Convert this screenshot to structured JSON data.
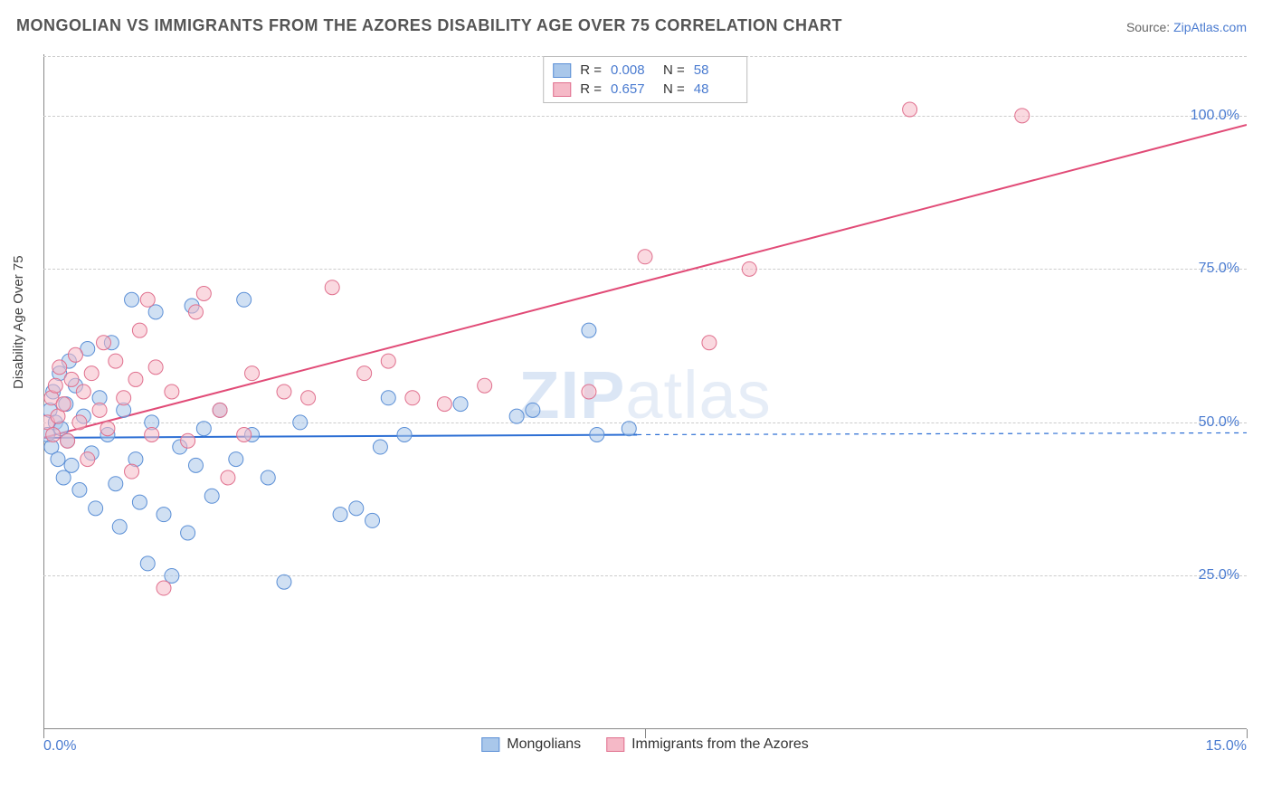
{
  "title": "MONGOLIAN VS IMMIGRANTS FROM THE AZORES DISABILITY AGE OVER 75 CORRELATION CHART",
  "source_label": "Source: ",
  "source_name": "ZipAtlas.com",
  "y_axis_label": "Disability Age Over 75",
  "watermark_main": "ZIP",
  "watermark_sub": "atlas",
  "chart": {
    "type": "scatter",
    "xlim": [
      0,
      15
    ],
    "ylim": [
      0,
      110
    ],
    "x_ticks": [
      0,
      7.5,
      15
    ],
    "x_tick_labels": [
      "0.0%",
      "",
      "15.0%"
    ],
    "y_ticks": [
      25,
      50,
      75,
      100
    ],
    "y_tick_labels": [
      "25.0%",
      "50.0%",
      "75.0%",
      "100.0%"
    ],
    "grid_color": "#cccccc",
    "background_color": "#ffffff",
    "marker_radius": 8,
    "marker_opacity": 0.55,
    "series": [
      {
        "name": "Mongolians",
        "color_fill": "#a9c7ea",
        "color_stroke": "#5b8fd6",
        "r": "0.008",
        "n": "58",
        "regression": {
          "x1": 0,
          "y1": 47.5,
          "x2": 7.4,
          "y2": 48.0,
          "extend_x": 15,
          "extend_y": 48.3,
          "stroke": "#2d6fd4",
          "width": 2
        },
        "points": [
          [
            0.05,
            48
          ],
          [
            0.08,
            52
          ],
          [
            0.1,
            46
          ],
          [
            0.12,
            55
          ],
          [
            0.15,
            50
          ],
          [
            0.18,
            44
          ],
          [
            0.2,
            58
          ],
          [
            0.22,
            49
          ],
          [
            0.25,
            41
          ],
          [
            0.28,
            53
          ],
          [
            0.3,
            47
          ],
          [
            0.32,
            60
          ],
          [
            0.35,
            43
          ],
          [
            0.4,
            56
          ],
          [
            0.45,
            39
          ],
          [
            0.5,
            51
          ],
          [
            0.55,
            62
          ],
          [
            0.6,
            45
          ],
          [
            0.65,
            36
          ],
          [
            0.7,
            54
          ],
          [
            0.8,
            48
          ],
          [
            0.85,
            63
          ],
          [
            0.9,
            40
          ],
          [
            0.95,
            33
          ],
          [
            1.0,
            52
          ],
          [
            1.1,
            70
          ],
          [
            1.15,
            44
          ],
          [
            1.2,
            37
          ],
          [
            1.3,
            27
          ],
          [
            1.35,
            50
          ],
          [
            1.4,
            68
          ],
          [
            1.5,
            35
          ],
          [
            1.6,
            25
          ],
          [
            1.7,
            46
          ],
          [
            1.8,
            32
          ],
          [
            1.85,
            69
          ],
          [
            1.9,
            43
          ],
          [
            2.0,
            49
          ],
          [
            2.1,
            38
          ],
          [
            2.2,
            52
          ],
          [
            2.4,
            44
          ],
          [
            2.5,
            70
          ],
          [
            2.6,
            48
          ],
          [
            2.8,
            41
          ],
          [
            3.0,
            24
          ],
          [
            3.2,
            50
          ],
          [
            3.7,
            35
          ],
          [
            3.9,
            36
          ],
          [
            4.1,
            34
          ],
          [
            4.2,
            46
          ],
          [
            4.3,
            54
          ],
          [
            4.5,
            48
          ],
          [
            5.2,
            53
          ],
          [
            5.9,
            51
          ],
          [
            6.1,
            52
          ],
          [
            6.8,
            65
          ],
          [
            6.9,
            48
          ],
          [
            7.3,
            49
          ]
        ]
      },
      {
        "name": "Immigrants from the Azores",
        "color_fill": "#f5b9c7",
        "color_stroke": "#e0708e",
        "r": "0.657",
        "n": "48",
        "regression": {
          "x1": 0,
          "y1": 47.5,
          "x2": 15,
          "y2": 98.5,
          "extend_x": 15,
          "extend_y": 98.5,
          "stroke": "#e14b77",
          "width": 2
        },
        "points": [
          [
            0.05,
            50
          ],
          [
            0.1,
            54
          ],
          [
            0.12,
            48
          ],
          [
            0.15,
            56
          ],
          [
            0.18,
            51
          ],
          [
            0.2,
            59
          ],
          [
            0.25,
            53
          ],
          [
            0.3,
            47
          ],
          [
            0.35,
            57
          ],
          [
            0.4,
            61
          ],
          [
            0.45,
            50
          ],
          [
            0.5,
            55
          ],
          [
            0.55,
            44
          ],
          [
            0.6,
            58
          ],
          [
            0.7,
            52
          ],
          [
            0.75,
            63
          ],
          [
            0.8,
            49
          ],
          [
            0.9,
            60
          ],
          [
            1.0,
            54
          ],
          [
            1.1,
            42
          ],
          [
            1.15,
            57
          ],
          [
            1.2,
            65
          ],
          [
            1.3,
            70
          ],
          [
            1.35,
            48
          ],
          [
            1.4,
            59
          ],
          [
            1.5,
            23
          ],
          [
            1.6,
            55
          ],
          [
            1.8,
            47
          ],
          [
            1.9,
            68
          ],
          [
            2.0,
            71
          ],
          [
            2.2,
            52
          ],
          [
            2.3,
            41
          ],
          [
            2.5,
            48
          ],
          [
            2.6,
            58
          ],
          [
            3.0,
            55
          ],
          [
            3.3,
            54
          ],
          [
            3.6,
            72
          ],
          [
            4.0,
            58
          ],
          [
            4.3,
            60
          ],
          [
            4.6,
            54
          ],
          [
            5.0,
            53
          ],
          [
            5.5,
            56
          ],
          [
            6.8,
            55
          ],
          [
            7.5,
            77
          ],
          [
            8.3,
            63
          ],
          [
            8.8,
            75
          ],
          [
            10.8,
            101
          ],
          [
            12.2,
            100
          ]
        ]
      }
    ],
    "legend_bottom": [
      {
        "label": "Mongolians",
        "fill": "#a9c7ea",
        "stroke": "#5b8fd6"
      },
      {
        "label": "Immigrants from the Azores",
        "fill": "#f5b9c7",
        "stroke": "#e0708e"
      }
    ]
  }
}
